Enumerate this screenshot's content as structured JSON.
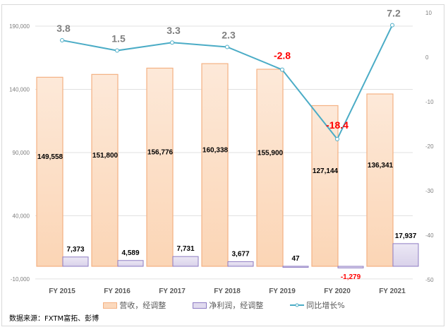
{
  "chart_data": {
    "type": "bar+line",
    "categories": [
      "FY 2015",
      "FY 2016",
      "FY 2017",
      "FY 2018",
      "FY 2019",
      "FY 2020",
      "FY 2021"
    ],
    "series": [
      {
        "name": "营收，经调整",
        "type": "bar",
        "axis": "left",
        "values": [
          149558,
          151800,
          156776,
          160338,
          155900,
          127144,
          136341
        ],
        "labels": [
          "149,558",
          "151,800",
          "156,776",
          "160,338",
          "155,900",
          "127,144",
          "136,341"
        ],
        "color": "#f4b183"
      },
      {
        "name": "净利润，经调整",
        "type": "bar",
        "axis": "left",
        "values": [
          7373,
          4589,
          7731,
          3677,
          47,
          -1279,
          17937
        ],
        "labels": [
          "7,373",
          "4,589",
          "7,731",
          "3,677",
          "47",
          "-1,279",
          "17,937"
        ],
        "color": "#b4a7d6"
      },
      {
        "name": "同比增长%",
        "type": "line",
        "axis": "right",
        "values": [
          3.8,
          1.5,
          3.3,
          2.3,
          -2.8,
          -18.4,
          7.2
        ],
        "labels": [
          "3.8",
          "1.5",
          "3.3",
          "2.3",
          "-2.8",
          "-18.4",
          "7.2"
        ],
        "color": "#4bacc6"
      }
    ],
    "left_axis": {
      "ticks": [
        "190,000",
        "140,000",
        "90,000",
        "40,000",
        "-10,000"
      ],
      "range": [
        -10000,
        190000
      ]
    },
    "right_axis": {
      "ticks": [
        "10",
        "0",
        "-10",
        "-20",
        "-30",
        "-40",
        "-50"
      ],
      "range": [
        -50,
        10
      ]
    },
    "grid": true,
    "legend": "bottom",
    "negative_label_color": "#ff0000",
    "positive_label_color": "#7f7f7f"
  },
  "source": "数据来源：FXTM富拓、彭博"
}
